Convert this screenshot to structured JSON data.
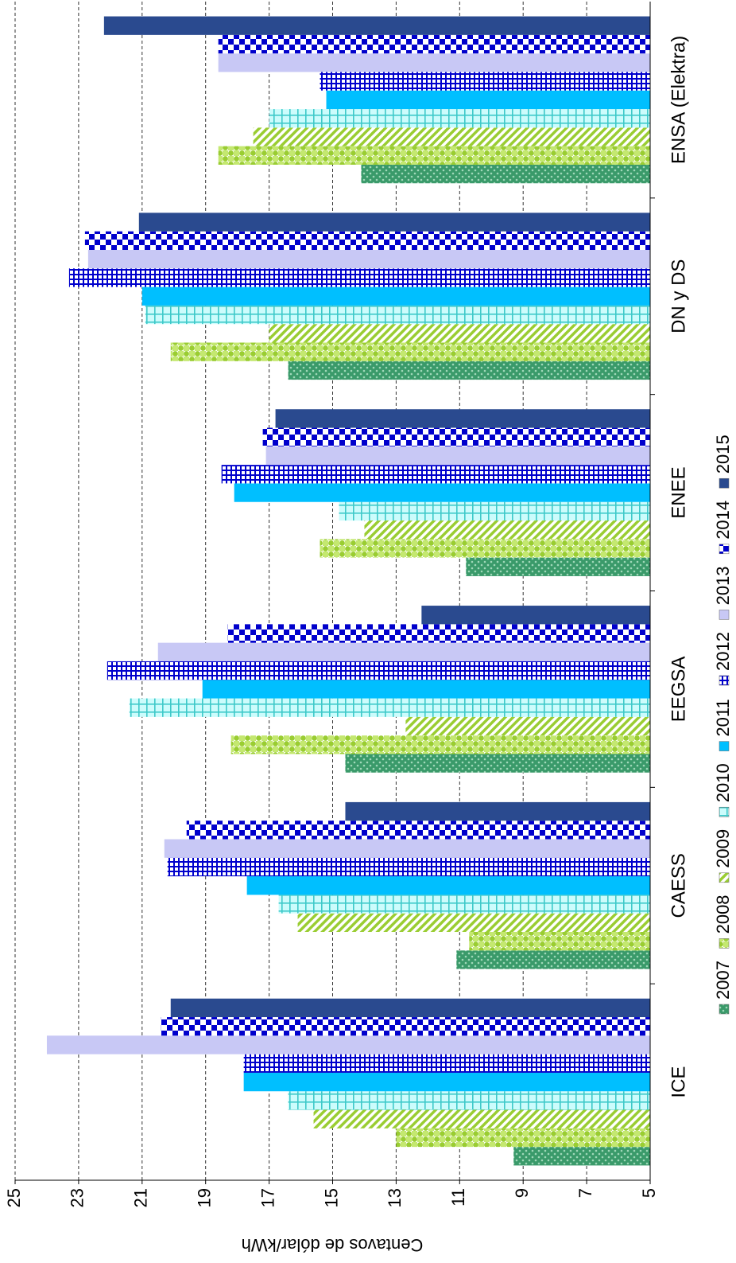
{
  "chart_data": {
    "type": "bar",
    "orientation": "horizontal-rotated",
    "ylabel": "Centavos de dólar/kWh",
    "ylim": [
      5,
      25
    ],
    "yticks": [
      5,
      7,
      9,
      11,
      13,
      15,
      17,
      19,
      21,
      23,
      25
    ],
    "grid": true,
    "legend_position": "bottom",
    "categories": [
      "ICE",
      "CAESS",
      "EEGSA",
      "ENEE",
      "DN y DS",
      "ENSA (Elektra)"
    ],
    "series": [
      {
        "name": "2007",
        "color": "#3a9a6a",
        "pattern": "dots",
        "values": [
          9.3,
          11.1,
          14.6,
          10.8,
          16.4,
          14.1
        ]
      },
      {
        "name": "2008",
        "color": "#9acd32",
        "pattern": "checker-circles",
        "values": [
          13.0,
          10.7,
          18.2,
          15.4,
          20.1,
          18.6
        ]
      },
      {
        "name": "2009",
        "color": "#9acd32",
        "pattern": "diagonal",
        "values": [
          15.6,
          16.1,
          12.7,
          14.0,
          17.0,
          17.5
        ]
      },
      {
        "name": "2010",
        "color": "#7fe6e6",
        "pattern": "grid-light",
        "values": [
          16.4,
          16.7,
          21.4,
          14.8,
          20.9,
          17.0
        ]
      },
      {
        "name": "2011",
        "color": "#00bfff",
        "pattern": "solid",
        "values": [
          17.8,
          17.7,
          19.1,
          18.1,
          21.0,
          15.2
        ]
      },
      {
        "name": "2012",
        "color": "#0000cc",
        "pattern": "grid-heavy",
        "values": [
          17.8,
          20.2,
          22.1,
          18.5,
          23.3,
          15.4
        ]
      },
      {
        "name": "2013",
        "color": "#c8c8f5",
        "pattern": "solid",
        "values": [
          24.0,
          20.3,
          20.5,
          17.1,
          22.7,
          18.6
        ]
      },
      {
        "name": "2014",
        "color": "#0000cc",
        "pattern": "checker",
        "values": [
          20.4,
          19.6,
          18.3,
          17.2,
          22.8,
          18.6
        ]
      },
      {
        "name": "2015",
        "color": "#2a4a8f",
        "pattern": "solid",
        "values": [
          20.1,
          14.6,
          12.2,
          16.8,
          21.1,
          22.2
        ]
      }
    ]
  }
}
